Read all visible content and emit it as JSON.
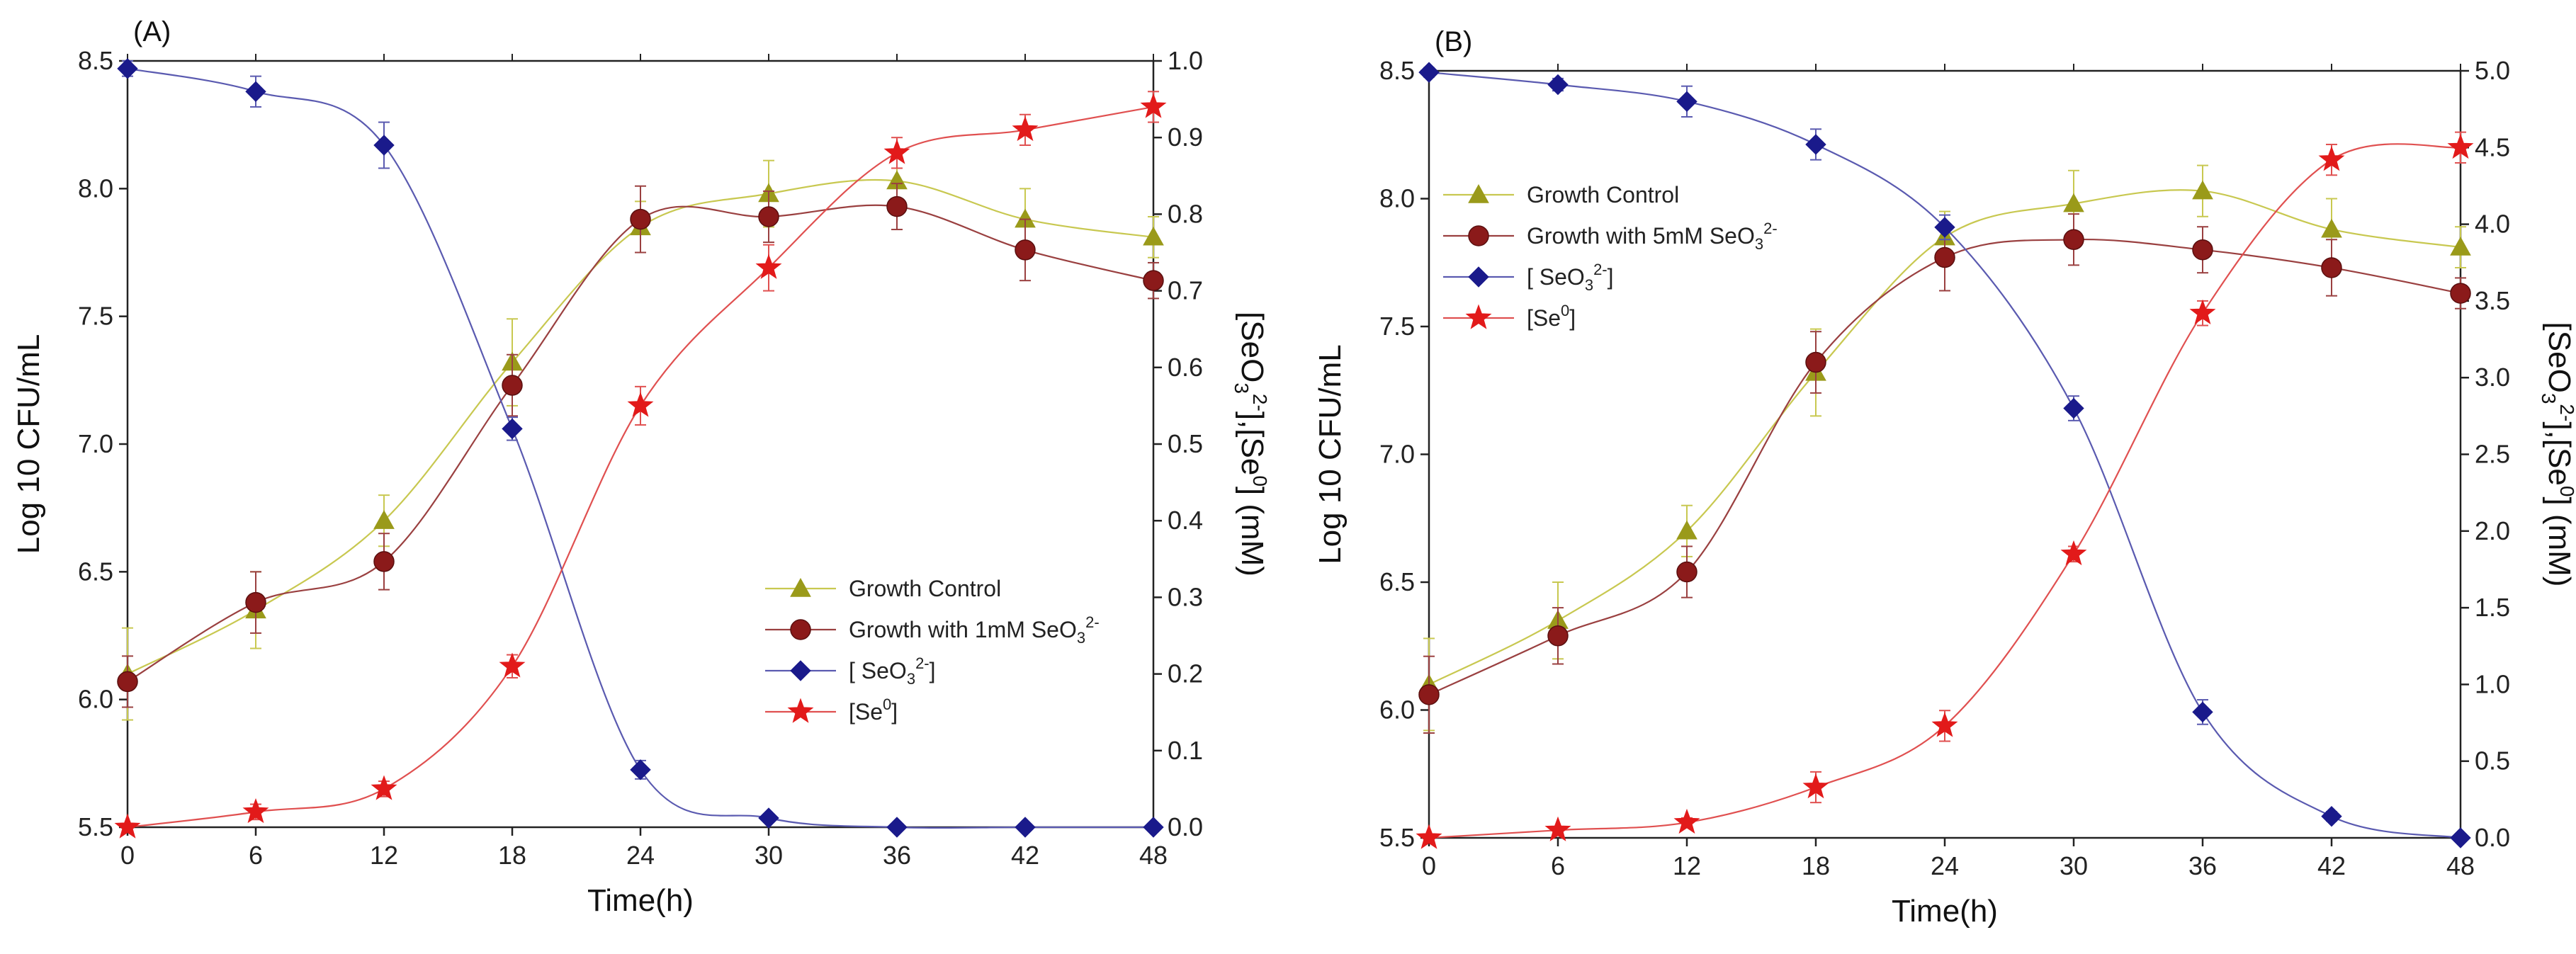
{
  "chart_data": [
    {
      "type": "line",
      "panel_label": "(A)",
      "xlabel": "Time(h)",
      "ylabel": "Log 10 CFU/mL",
      "y2label": "[SeO3^2-],[Se^0] (mM)",
      "x": [
        0,
        6,
        12,
        18,
        24,
        30,
        36,
        42,
        48
      ],
      "xticks": [
        "0",
        "6",
        "12",
        "18",
        "24",
        "30",
        "36",
        "42",
        "48"
      ],
      "xlim": [
        0,
        48
      ],
      "ylim": [
        5.5,
        8.5
      ],
      "yticks": [
        "5.5",
        "6.0",
        "6.5",
        "7.0",
        "7.5",
        "8.0",
        "8.5"
      ],
      "y2lim": [
        0,
        1.0
      ],
      "y2ticks": [
        "0.0",
        "0.1",
        "0.2",
        "0.3",
        "0.4",
        "0.5",
        "0.6",
        "0.7",
        "0.8",
        "0.9",
        "1.0"
      ],
      "legend_position": "lower-right",
      "series": [
        {
          "name": "Growth Control",
          "label_pre": "Growth Control",
          "label_sup": "",
          "label_post": "",
          "axis": "left",
          "marker": "triangle",
          "color": "#9a9a1a",
          "line_color": "#c8c850",
          "values": [
            6.1,
            6.35,
            6.7,
            7.32,
            7.85,
            7.98,
            8.03,
            7.88,
            7.81
          ],
          "errors": [
            0.18,
            0.15,
            0.1,
            0.17,
            0.1,
            0.13,
            0.1,
            0.12,
            0.08
          ]
        },
        {
          "name": "Growth with 1mM SeO3 2-",
          "label_pre": "Growth with 1mM SeO",
          "label_sub": "3",
          "label_sup": "2-",
          "label_post": "",
          "axis": "left",
          "marker": "circle",
          "color": "#8b1a1a",
          "line_color": "#9a4040",
          "values": [
            6.07,
            6.38,
            6.54,
            7.23,
            7.88,
            7.89,
            7.93,
            7.76,
            7.64
          ],
          "errors": [
            0.1,
            0.12,
            0.11,
            0.12,
            0.13,
            0.1,
            0.09,
            0.12,
            0.07
          ]
        },
        {
          "name": "[SeO3 2-]",
          "label_pre": "[ SeO",
          "label_sub": "3",
          "label_sup": "2-",
          "label_post": "]",
          "axis": "right",
          "marker": "diamond",
          "color": "#1a1a8b",
          "line_color": "#5a5ab0",
          "values": [
            0.99,
            0.96,
            0.89,
            0.52,
            0.075,
            0.012,
            0.0,
            0.0,
            0.0
          ],
          "errors": [
            0.01,
            0.02,
            0.03,
            0.015,
            0.012,
            0.005,
            0.0,
            0.0,
            0.0
          ]
        },
        {
          "name": "[Se0]",
          "label_pre": "[Se",
          "label_sub": "",
          "label_sup": "0",
          "label_post": "]",
          "axis": "right",
          "marker": "star",
          "color": "#e21a1a",
          "line_color": "#e05050",
          "values": [
            0.0,
            0.02,
            0.05,
            0.21,
            0.55,
            0.73,
            0.88,
            0.91,
            0.94
          ],
          "errors": [
            0.0,
            0.01,
            0.01,
            0.015,
            0.025,
            0.03,
            0.02,
            0.02,
            0.02
          ]
        }
      ]
    },
    {
      "type": "line",
      "panel_label": "(B)",
      "xlabel": "Time(h)",
      "ylabel": "Log 10 CFU/mL",
      "y2label": "[SeO3^2-],[Se^0] (mM)",
      "x": [
        0,
        6,
        12,
        18,
        24,
        30,
        36,
        42,
        48
      ],
      "xticks": [
        "0",
        "6",
        "12",
        "18",
        "24",
        "30",
        "36",
        "42",
        "48"
      ],
      "xlim": [
        0,
        48
      ],
      "ylim": [
        5.5,
        8.5
      ],
      "yticks": [
        "5.5",
        "6.0",
        "6.5",
        "7.0",
        "7.5",
        "8.0",
        "8.5"
      ],
      "y2lim": [
        0,
        5.0
      ],
      "y2ticks": [
        "0.0",
        "0.5",
        "1.0",
        "1.5",
        "2.0",
        "2.5",
        "3.0",
        "3.5",
        "4.0",
        "4.5",
        "5.0"
      ],
      "legend_position": "upper-left",
      "series": [
        {
          "name": "Growth Control",
          "label_pre": "Growth Control",
          "label_sup": "",
          "label_post": "",
          "axis": "left",
          "marker": "triangle",
          "color": "#9a9a1a",
          "line_color": "#c8c850",
          "values": [
            6.1,
            6.35,
            6.7,
            7.32,
            7.85,
            7.98,
            8.03,
            7.88,
            7.81
          ],
          "errors": [
            0.18,
            0.15,
            0.1,
            0.17,
            0.1,
            0.13,
            0.1,
            0.12,
            0.08
          ]
        },
        {
          "name": "Growth with 5mM SeO3 2-",
          "label_pre": "Growth with 5mM SeO",
          "label_sub": "3",
          "label_sup": "2-",
          "label_post": "",
          "axis": "left",
          "marker": "circle",
          "color": "#8b1a1a",
          "line_color": "#9a4040",
          "values": [
            6.06,
            6.29,
            6.54,
            7.36,
            7.77,
            7.84,
            7.8,
            7.73,
            7.63
          ],
          "errors": [
            0.15,
            0.11,
            0.1,
            0.12,
            0.13,
            0.1,
            0.09,
            0.11,
            0.06
          ]
        },
        {
          "name": "[SeO3 2-]",
          "label_pre": "[ SeO",
          "label_sub": "3",
          "label_sup": "2-",
          "label_post": "]",
          "axis": "right",
          "marker": "diamond",
          "color": "#1a1a8b",
          "line_color": "#5a5ab0",
          "values": [
            4.99,
            4.91,
            4.8,
            4.52,
            3.98,
            2.8,
            0.82,
            0.14,
            0.0
          ],
          "errors": [
            0.03,
            0.04,
            0.1,
            0.1,
            0.08,
            0.08,
            0.08,
            0.03,
            0.0
          ]
        },
        {
          "name": "[Se0]",
          "label_pre": "[Se",
          "label_sub": "",
          "label_sup": "0",
          "label_post": "]",
          "axis": "right",
          "marker": "star",
          "color": "#e21a1a",
          "line_color": "#e05050",
          "values": [
            0.0,
            0.05,
            0.1,
            0.33,
            0.73,
            1.85,
            3.42,
            4.42,
            4.5
          ],
          "errors": [
            0.0,
            0.02,
            0.03,
            0.1,
            0.1,
            0.05,
            0.08,
            0.1,
            0.1
          ]
        }
      ]
    }
  ]
}
